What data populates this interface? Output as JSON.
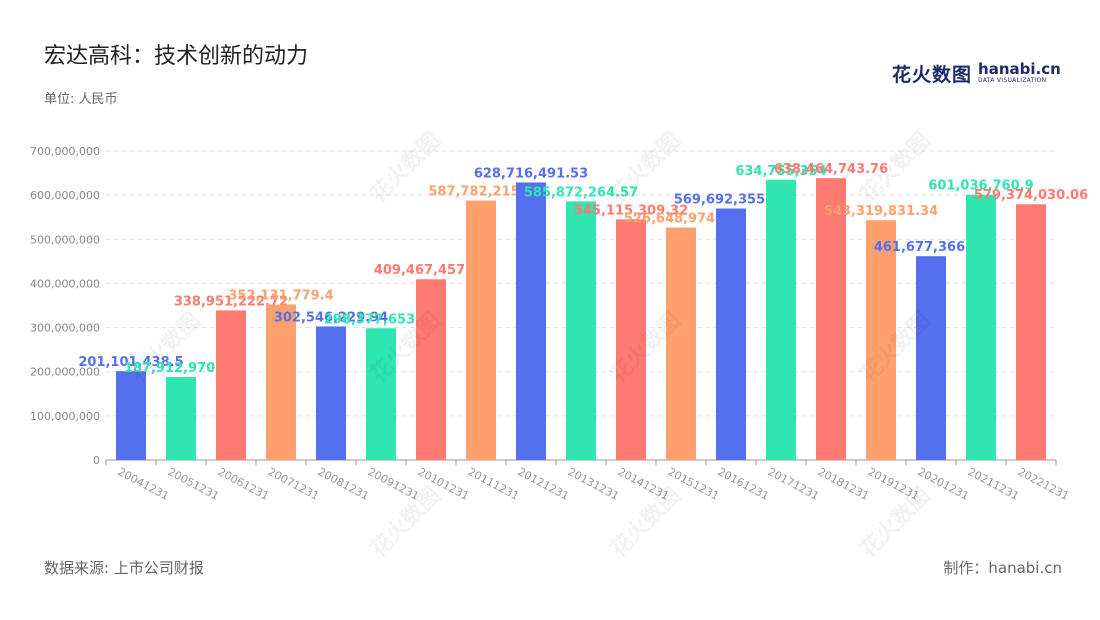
{
  "header": {
    "title": "宏达高科：技术创新的动力",
    "unit": "单位: 人民币"
  },
  "footer": {
    "source": "数据来源: 上市公司财报",
    "maker": "制作：hanabi.cn"
  },
  "logo": {
    "cn": "花火数图",
    "en": "hanabi.cn",
    "sub": "DATA VISUALIZATION"
  },
  "colors": [
    "#5470ee",
    "#2ee6b0",
    "#ff7a70",
    "#ffa06e"
  ],
  "chart_data": {
    "type": "bar",
    "categories": [
      "20041231",
      "20051231",
      "20061231",
      "20071231",
      "20081231",
      "20091231",
      "20101231",
      "20111231",
      "20121231",
      "20131231",
      "20141231",
      "20151231",
      "20161231",
      "20171231",
      "20181231",
      "20191231",
      "20201231",
      "20211231",
      "20221231"
    ],
    "values": [
      201101438.5,
      187912970.55,
      338951222.72,
      352131779.4,
      302546229.94,
      298377653.88,
      409467457.09,
      587782215.1,
      628716491.53,
      585872264.57,
      545115309.32,
      526648974.49,
      569692355.56,
      634755354,
      638464743.76,
      543319831.34,
      461677366.93,
      601036760.9,
      579374030.06
    ],
    "value_labels": [
      "201,101,438.5",
      "187,912,970.55",
      "338,951,222.72",
      "352,131,779.4",
      "302,546,229.94",
      "298,377,653.88",
      "409,467,457.09",
      "587,782,215.1",
      "628,716,491.53",
      "585,872,264.57",
      "545,115,309.32",
      "526,648,974.49",
      "569,692,355.56",
      "634,755,354",
      "638,464,743.76",
      "543,319,831.34",
      "461,677,366.93",
      "601,036,760.9",
      "579,374,030.06"
    ],
    "ylim": [
      0,
      700000000
    ],
    "yticks": [
      0,
      100000000,
      200000000,
      300000000,
      400000000,
      500000000,
      600000000,
      700000000
    ],
    "ytick_labels": [
      "0",
      "100,000,000",
      "200,000,000",
      "300,000,000",
      "400,000,000",
      "500,000,000",
      "600,000,000",
      "700,000,000"
    ],
    "grid": true,
    "legend": "none"
  }
}
